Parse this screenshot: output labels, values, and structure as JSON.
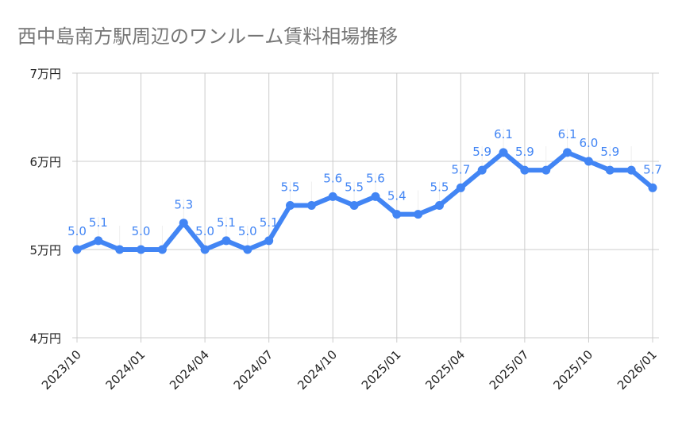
{
  "chart_data": {
    "type": "line",
    "title": "西中島南方駅周辺のワンルーム賃料相場推移",
    "xlabel": "",
    "ylabel": "",
    "ylim": [
      4,
      7
    ],
    "yticks": [
      4,
      5,
      6,
      7
    ],
    "ytick_labels": [
      "4万円",
      "5万円",
      "6万円",
      "7万円"
    ],
    "xtick_labels": [
      "2023/10",
      "2024/01",
      "2024/04",
      "2024/07",
      "2024/10",
      "2025/01",
      "2025/04",
      "2025/07",
      "2025/10",
      "2026/01"
    ],
    "x": [
      "2023/10",
      "2023/11",
      "2023/12",
      "2024/01",
      "2024/02",
      "2024/03",
      "2024/04",
      "2024/05",
      "2024/06",
      "2024/07",
      "2024/08",
      "2024/09",
      "2024/10",
      "2024/11",
      "2024/12",
      "2025/01",
      "2025/02",
      "2025/03",
      "2025/04",
      "2025/05",
      "2025/06",
      "2025/07",
      "2025/08",
      "2025/09",
      "2025/10",
      "2025/11",
      "2025/12",
      "2026/01"
    ],
    "values": [
      5.0,
      5.1,
      5.0,
      5.0,
      5.0,
      5.3,
      5.0,
      5.1,
      5.0,
      5.1,
      5.5,
      5.5,
      5.6,
      5.5,
      5.6,
      5.4,
      5.4,
      5.5,
      5.7,
      5.9,
      6.1,
      5.9,
      5.9,
      6.1,
      6.0,
      5.9,
      5.9,
      5.7
    ],
    "data_labels": [
      "5.0",
      "5.1",
      null,
      "5.0",
      null,
      "5.3",
      "5.0",
      "5.1",
      "5.0",
      "5.1",
      "5.5",
      null,
      "5.6",
      "5.5",
      "5.6",
      "5.4",
      null,
      "5.5",
      "5.7",
      "5.9",
      "6.1",
      "5.9",
      null,
      "6.1",
      "6.0",
      "5.9",
      null,
      "5.7"
    ],
    "grid": true,
    "legend": "none",
    "colors": {
      "line": "#4285f4",
      "grid": "#cccccc",
      "title": "#757575",
      "axis_text": "#222222"
    }
  }
}
